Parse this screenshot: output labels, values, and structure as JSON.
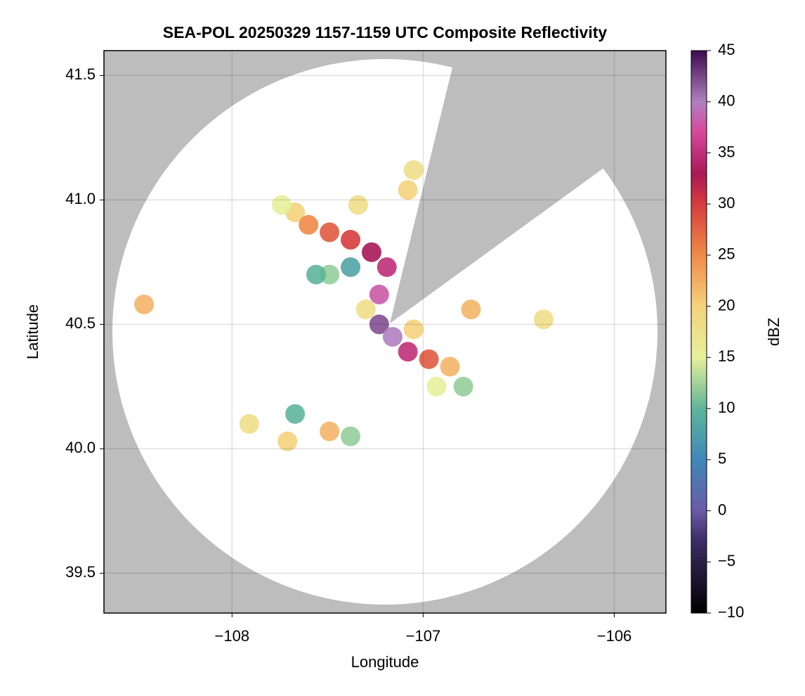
{
  "chart_data": {
    "type": "radar",
    "title": "SEA-POL 20250329 1157-1159 UTC Composite Reflectivity",
    "x_label": "Longitude",
    "y_label": "Latitude",
    "colorbar_label": "dBZ",
    "xlim": [
      -108.67,
      -105.73
    ],
    "ylim": [
      39.34,
      41.6
    ],
    "xticks": [
      {
        "value": -108,
        "label": "−108"
      },
      {
        "value": -107,
        "label": "−107"
      },
      {
        "value": -106,
        "label": "−106"
      }
    ],
    "yticks": [
      39.5,
      40.0,
      40.5,
      41.0,
      41.5
    ],
    "clim": [
      -10,
      45
    ],
    "cticks": [
      {
        "value": -10,
        "label": "−10"
      },
      {
        "value": -5,
        "label": "−5"
      },
      0,
      5,
      10,
      15,
      20,
      25,
      30,
      35,
      40,
      45
    ],
    "colormap": [
      {
        "value": -10,
        "color": "#000000"
      },
      {
        "value": -3,
        "color": "#3a2d63"
      },
      {
        "value": 0,
        "color": "#6a5aa8"
      },
      {
        "value": 5,
        "color": "#3f88b8"
      },
      {
        "value": 10,
        "color": "#5fb59a"
      },
      {
        "value": 15,
        "color": "#e6f09a"
      },
      {
        "value": 20,
        "color": "#f5d27c"
      },
      {
        "value": 25,
        "color": "#f08a48"
      },
      {
        "value": 30,
        "color": "#d63c3c"
      },
      {
        "value": 33,
        "color": "#a81858"
      },
      {
        "value": 37,
        "color": "#d8479a"
      },
      {
        "value": 40,
        "color": "#b07fc0"
      },
      {
        "value": 45,
        "color": "#3e0a4e"
      }
    ],
    "grid": true,
    "x": [
      -107.67,
      -107.74,
      -107.6,
      -107.49,
      -107.38,
      -107.27,
      -107.19,
      -107.38,
      -107.49,
      -107.23,
      -107.23,
      -107.16,
      -107.08,
      -106.97,
      -106.86,
      -106.93,
      -106.79,
      -107.08,
      -107.05,
      -107.34,
      -106.75,
      -106.37,
      -108.46,
      -107.91,
      -107.71,
      -107.49,
      -107.38,
      -107.67,
      -107.56,
      -107.3,
      -107.05
    ],
    "y": [
      40.95,
      40.98,
      40.9,
      40.87,
      40.84,
      40.79,
      40.73,
      40.73,
      40.7,
      40.62,
      40.5,
      40.45,
      40.39,
      40.36,
      40.33,
      40.25,
      40.25,
      41.04,
      41.12,
      40.98,
      40.56,
      40.52,
      40.58,
      40.1,
      40.03,
      40.07,
      40.05,
      40.14,
      40.7,
      40.56,
      40.48
    ],
    "values": [
      20,
      15,
      25,
      28,
      30,
      33,
      35,
      8,
      12,
      38,
      42,
      40,
      35,
      28,
      22,
      15,
      12,
      20,
      18,
      18,
      22,
      18,
      22,
      18,
      20,
      22,
      12,
      10,
      10,
      18,
      20
    ]
  }
}
